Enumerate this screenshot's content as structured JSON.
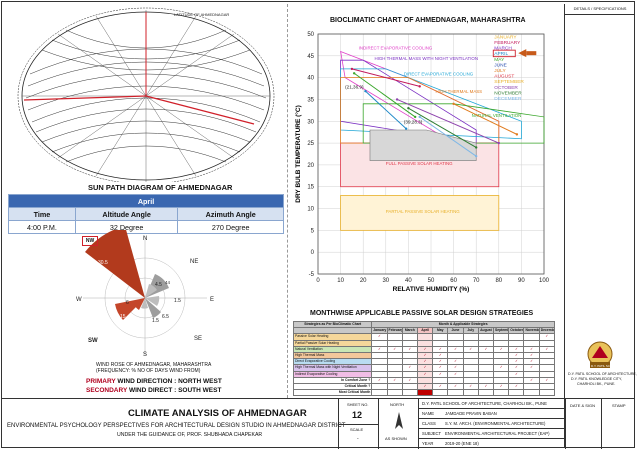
{
  "sunpath": {
    "compass_label": "LATITUDE OF AHMEDNAGAR",
    "title": "SUN PATH DIAGRAM OF AHMEDNAGAR",
    "month": "April",
    "headers": [
      "Time",
      "Altitude Angle",
      "Azimuth Angle"
    ],
    "row": [
      "4:00 P.M.",
      "32 Degree",
      "270 Degree"
    ]
  },
  "windrose": {
    "labels": {
      "n": "N",
      "ne": "NE",
      "e": "E",
      "se": "SE",
      "s": "S",
      "sw": "SW",
      "w": "W",
      "nw": "NW"
    },
    "values": {
      "nw": "30.5",
      "ne": "4.5",
      "e": "1.5",
      "se": "6.5",
      "s": "1.5",
      "sw": "15",
      "w": "6",
      "ne2": "44"
    },
    "caption1": "WIND ROSE OF AHMEDNAGAR, MAHARASHTRA",
    "caption2": "(FREQUENCY: % NO OF DAYS WIND FROM)",
    "primary_label": "PRIMARY",
    "primary_text": " WIND DIRECTION : NORTH WEST",
    "secondary_label": "SECONDARY",
    "secondary_text": " WIND DIRECT : SOUTH WEST"
  },
  "chart_data": {
    "type": "line",
    "title": "BIOCLIMATIC CHART OF AHMEDNAGAR, MAHARASHTRA",
    "xlabel": "RELATIVE HUMIDITY (%)",
    "ylabel": "DRY BULB TEMPERATURE (°C)",
    "xlim": [
      0,
      100
    ],
    "ylim": [
      -5,
      50
    ],
    "xticks": [
      "0",
      "10",
      "20",
      "30",
      "40",
      "50",
      "60",
      "70",
      "80",
      "90",
      "100"
    ],
    "yticks": [
      "-5",
      "0",
      "5",
      "10",
      "15",
      "20",
      "25",
      "30",
      "35",
      "40",
      "45",
      "50"
    ],
    "zones": [
      {
        "name": "INDIRECT EVAPORATIVE COOLING",
        "color": "#e040c8"
      },
      {
        "name": "HIGH THERMAL MASS WITH NIGHT VENTILATION",
        "color": "#7a2fc2"
      },
      {
        "name": "DIRECT EVAPORATIVE COOLING",
        "color": "#23a7d6"
      },
      {
        "name": "HIGH THERMAL MASS",
        "color": "#e07b1e"
      },
      {
        "name": "NATURAL VENTILATION",
        "color": "#3aa62b"
      },
      {
        "name": "FULL PASSIVE SOLAR HEATING",
        "color": "#e0384a"
      },
      {
        "name": "PARTIAL PASSIVE SOLAR HEATING",
        "color": "#e8b02a"
      }
    ],
    "annotations": [
      "(21,36.9)",
      "(39,28.3)"
    ],
    "months": [
      {
        "name": "JANUARY",
        "color": "#e8b02a"
      },
      {
        "name": "FEBRUARY",
        "color": "#c2185b"
      },
      {
        "name": "MARCH",
        "color": "#7a2fc2"
      },
      {
        "name": "APRIL",
        "color": "#1e88c7"
      },
      {
        "name": "MAY",
        "color": "#3aa62b"
      },
      {
        "name": "JUNE",
        "color": "#2a4fb0"
      },
      {
        "name": "JULY",
        "color": "#e07b1e"
      },
      {
        "name": "AUGUST",
        "color": "#e0384a"
      },
      {
        "name": "SEPTEMBER",
        "color": "#e8b02a"
      },
      {
        "name": "OCTOBER",
        "color": "#8e44ad"
      },
      {
        "name": "NOVEMBER",
        "color": "#2e7d32"
      },
      {
        "name": "DECEMBER",
        "color": "#7fb7e6"
      }
    ],
    "series": [
      {
        "name": "FEBRUARY",
        "color": "#c2185b",
        "x": [
          15,
          45
        ],
        "y": [
          42,
          38
        ]
      },
      {
        "name": "APRIL",
        "color": "#1e88c7",
        "x": [
          21,
          39
        ],
        "y": [
          36.9,
          28.3
        ]
      },
      {
        "name": "MAY",
        "color": "#3aa62b",
        "x": [
          16,
          43
        ],
        "y": [
          41,
          31
        ]
      },
      {
        "name": "JULY",
        "color": "#e07b1e",
        "x": [
          60,
          88
        ],
        "y": [
          34,
          27
        ]
      },
      {
        "name": "OCTOBER",
        "color": "#8e44ad",
        "x": [
          35,
          80
        ],
        "y": [
          35,
          25
        ]
      },
      {
        "name": "NOVEMBER",
        "color": "#2e7d32",
        "x": [
          40,
          70
        ],
        "y": [
          33,
          24
        ]
      },
      {
        "name": "DECEMBER",
        "color": "#7fb7e6",
        "x": [
          45,
          70
        ],
        "y": [
          31,
          22
        ]
      }
    ]
  },
  "strategies": {
    "title": "MONTHWISE APPLICABLE PASSIVE SOLAR DESIGN STRATEGIES",
    "header1": "Strategies as Per BioClimatic Chart",
    "header2": "Month & Applicable Strategies",
    "months": [
      "January",
      "February",
      "March",
      "April",
      "May",
      "June",
      "July",
      "August",
      "September",
      "October",
      "November",
      "December"
    ],
    "rows": [
      {
        "label": "Passive Solar Heating",
        "color": "#f5d79a",
        "checks": [
          1,
          0,
          0,
          0,
          0,
          0,
          0,
          0,
          0,
          0,
          0,
          1
        ]
      },
      {
        "label": "Partial Passive Solar Heating",
        "color": "#f5d79a",
        "checks": [
          0,
          0,
          0,
          0,
          0,
          0,
          0,
          0,
          0,
          0,
          0,
          0
        ]
      },
      {
        "label": "Natural Ventilation",
        "color": "#c9e6b5",
        "checks": [
          1,
          1,
          1,
          1,
          1,
          1,
          1,
          1,
          1,
          1,
          1,
          1
        ]
      },
      {
        "label": "High Thermal Mass",
        "color": "#f3c79b",
        "checks": [
          0,
          0,
          0,
          1,
          1,
          0,
          0,
          0,
          0,
          1,
          1,
          0
        ]
      },
      {
        "label": "Direct Evaporative Cooling",
        "color": "#b9dcf1",
        "checks": [
          0,
          0,
          0,
          1,
          1,
          1,
          0,
          0,
          0,
          1,
          1,
          0
        ]
      },
      {
        "label": "High Thermal Mass with Night Ventilation",
        "color": "#d8c2ec",
        "checks": [
          0,
          0,
          1,
          1,
          1,
          1,
          0,
          0,
          1,
          1,
          1,
          0
        ]
      },
      {
        "label": "Indirect Evaporative Cooling",
        "color": "#f1bde6",
        "checks": [
          0,
          0,
          0,
          1,
          1,
          1,
          0,
          0,
          0,
          1,
          0,
          0
        ]
      },
      {
        "label": "In Comfort Zone ?",
        "color": "#ffffff",
        "checks": [
          1,
          1,
          1,
          0,
          0,
          0,
          0,
          0,
          0,
          0,
          1,
          1
        ]
      }
    ],
    "critical_label": "Critical Month ?",
    "critical_checks": [
      0,
      0,
      0,
      1,
      1,
      1,
      1,
      1,
      1,
      1,
      0,
      0
    ],
    "most_critical_label": "Most Critical Month",
    "check_mark": "✓"
  },
  "right_strip": {
    "header": "DETAILS / SPECIFICATIONS",
    "logo_text": "D.Y. PATIL SCHOOL",
    "college1": "D.Y. PATIL SCHOOL OF ARCHITECTURE,",
    "college2": "D.Y. PATIL KNOWLEDGE CITY,",
    "college3": "CHARHOLI BK., PUNE.",
    "date_label": "DATE & SIGN",
    "stamp_label": "STAMP"
  },
  "footer": {
    "title": "CLIMATE ANALYSIS OF AHMEDNAGAR",
    "subtitle": "ENVIRONMENTAL PSYCHOLOGY PERSPECTIVES FOR ARCHITECTURAL DESIGN STUDIO IN AHMEDNAGAR DISTRICT",
    "guidance": "UNDER THE GUIDANCE OF, PROF. SHUBHADA CHAPEKAR",
    "sheet_no_label": "SHEET NO.",
    "sheet_no": "12",
    "scale_label": "SCALE",
    "scale_value": "-",
    "north_label": "NORTH",
    "as_shown": "AS SHOWN",
    "institution": "D.Y. PATIL SCHOOL OF ARCHITECTURE, CHARHOLI BK., PUNE",
    "name_label": "NAME",
    "name_value": "JAMDADE PRAVIN BABAN",
    "class_label": "CLASS",
    "class_value": "S.Y. M. ARCH. (ENVIRONMENTAL ARCHITECTURE)",
    "subject_label": "SUBJECT",
    "subject_value": "ENVIRONMENTAL ARCHITECTURAL PROJECT (EAP)",
    "year_label": "YEAR",
    "year_value": "2019-20 (ENE 18)"
  }
}
